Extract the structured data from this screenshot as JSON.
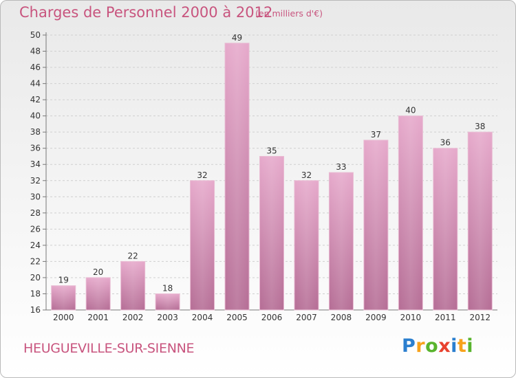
{
  "header": {
    "title": "Charges de Personnel 2000 à 2012",
    "subtitle": "(en milliers d'€)"
  },
  "footer": {
    "commune": "HEUGUEVILLE-SUR-SIENNE",
    "logo_letters": [
      "P",
      "r",
      "o",
      "x",
      "i",
      "t",
      "i"
    ],
    "logo_colors": [
      "#2b7fcf",
      "#f7a21b",
      "#59b42d",
      "#e8422f",
      "#2b7fcf",
      "#f7a21b",
      "#59b42d"
    ]
  },
  "chart_data": {
    "type": "bar",
    "categories": [
      "2000",
      "2001",
      "2002",
      "2003",
      "2004",
      "2005",
      "2006",
      "2007",
      "2008",
      "2009",
      "2010",
      "2011",
      "2012"
    ],
    "values": [
      19,
      20,
      22,
      18,
      32,
      49,
      35,
      32,
      33,
      37,
      40,
      36,
      38
    ],
    "data_labels": [
      "19",
      "20",
      "22",
      "18",
      "32",
      "49",
      "35",
      "32",
      "33",
      "37",
      "40",
      "36",
      "38"
    ],
    "y_ticks": [
      "16",
      "18",
      "20",
      "22",
      "24",
      "26",
      "28",
      "30",
      "32",
      "34",
      "36",
      "38",
      "40",
      "42",
      "44",
      "46",
      "48",
      "50"
    ],
    "ylim": [
      16,
      50
    ],
    "grid": true,
    "bar_color": "#d993b8",
    "title": "Charges de Personnel 2000 à 2012",
    "xlabel": "",
    "ylabel": ""
  }
}
